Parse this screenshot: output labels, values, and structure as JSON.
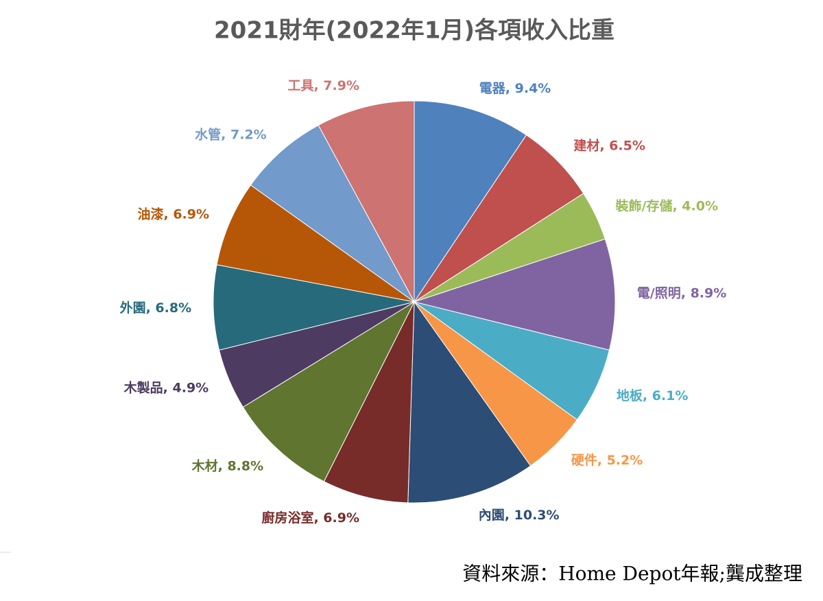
{
  "chart_data": {
    "type": "pie",
    "title": "2021財年(2022年1月)各項收入比重",
    "source": "資料來源：Home Depot年報;龔成整理",
    "label_separator": ", ",
    "categories": [
      "電器",
      "建材",
      "裝飾/存儲",
      "電/照明",
      "地板",
      "硬件",
      "內園",
      "廚房浴室",
      "木材",
      "木製品",
      "外園",
      "油漆",
      "水管",
      "工具"
    ],
    "values": [
      9.4,
      6.5,
      4.0,
      8.9,
      6.1,
      5.2,
      10.3,
      6.9,
      8.8,
      4.9,
      6.8,
      6.9,
      7.2,
      7.9
    ],
    "value_labels": [
      "9.4%",
      "6.5%",
      "4.0%",
      "8.9%",
      "6.1%",
      "5.2%",
      "10.3%",
      "6.9%",
      "8.8%",
      "4.9%",
      "6.8%",
      "6.9%",
      "7.2%",
      "7.9%"
    ],
    "colors": [
      "#4f81bd",
      "#c0504d",
      "#9bbb59",
      "#8064a2",
      "#4bacc6",
      "#f79646",
      "#2c4d75",
      "#772c2a",
      "#5f7530",
      "#4d3b62",
      "#276a7c",
      "#b65708",
      "#729aca",
      "#cd7371"
    ]
  }
}
